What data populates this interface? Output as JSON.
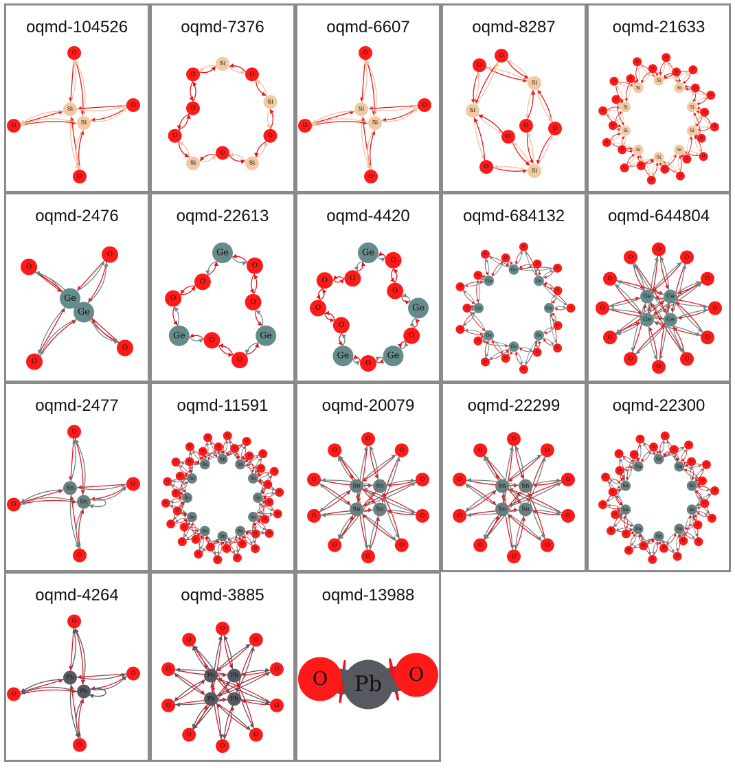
{
  "colors": {
    "O": "#ff1a1a",
    "Si": "#f2c9a0",
    "Ge": "#668b8b",
    "Sn": "#6a8080",
    "Pb": "#575961",
    "edge_O": "#e8141e",
    "edge_Si": "#f0c19a",
    "edge_Ge": "#668b8b",
    "edge_Sn": "#6a8080",
    "edge_Pb": "#575961"
  },
  "panels": [
    {
      "id": "oqmd-104526",
      "el": "Si",
      "layout": "cross"
    },
    {
      "id": "oqmd-7376",
      "el": "Si",
      "layout": "ring",
      "ring": [
        "Si",
        "O",
        "Si",
        "O",
        "Si",
        "O",
        "Si",
        "O",
        "O",
        "O"
      ]
    },
    {
      "id": "oqmd-6607",
      "el": "Si",
      "layout": "cross"
    },
    {
      "id": "oqmd-8287",
      "el": "Si",
      "layout": "cube"
    },
    {
      "id": "oqmd-21633",
      "el": "Si",
      "layout": "dense",
      "n_center": 10,
      "n_outer": 24
    },
    {
      "id": "oqmd-2476",
      "el": "Ge",
      "layout": "cross"
    },
    {
      "id": "oqmd-22613",
      "el": "Ge",
      "layout": "ring",
      "ring": [
        "Ge",
        "O",
        "O",
        "Ge",
        "O",
        "O",
        "Ge",
        "O",
        "O"
      ]
    },
    {
      "id": "oqmd-4420",
      "el": "Ge",
      "layout": "ring",
      "ring": [
        "Ge",
        "O",
        "O",
        "Ge",
        "O",
        "Ge",
        "O",
        "Ge",
        "O",
        "O",
        "O",
        "O"
      ]
    },
    {
      "id": "oqmd-684132",
      "el": "Ge",
      "layout": "dense",
      "n_center": 8,
      "n_outer": 18
    },
    {
      "id": "oqmd-644804",
      "el": "Ge",
      "layout": "star",
      "n_center": 4,
      "n_outer": 12
    },
    {
      "id": "oqmd-2477",
      "el": "Sn",
      "layout": "cross"
    },
    {
      "id": "oqmd-11591",
      "el": "Sn",
      "layout": "dense",
      "n_center": 12,
      "n_outer": 36
    },
    {
      "id": "oqmd-20079",
      "el": "Sn",
      "layout": "star",
      "n_center": 4,
      "n_outer": 10
    },
    {
      "id": "oqmd-22299",
      "el": "Sn",
      "layout": "star",
      "n_center": 4,
      "n_outer": 10
    },
    {
      "id": "oqmd-22300",
      "el": "Sn",
      "layout": "dense",
      "n_center": 10,
      "n_outer": 28
    },
    {
      "id": "oqmd-4264",
      "el": "Pb",
      "layout": "cross"
    },
    {
      "id": "oqmd-3885",
      "el": "Pb",
      "layout": "star",
      "n_center": 4,
      "n_outer": 10
    },
    {
      "id": "oqmd-13988",
      "el": "Pb",
      "layout": "pair"
    }
  ]
}
